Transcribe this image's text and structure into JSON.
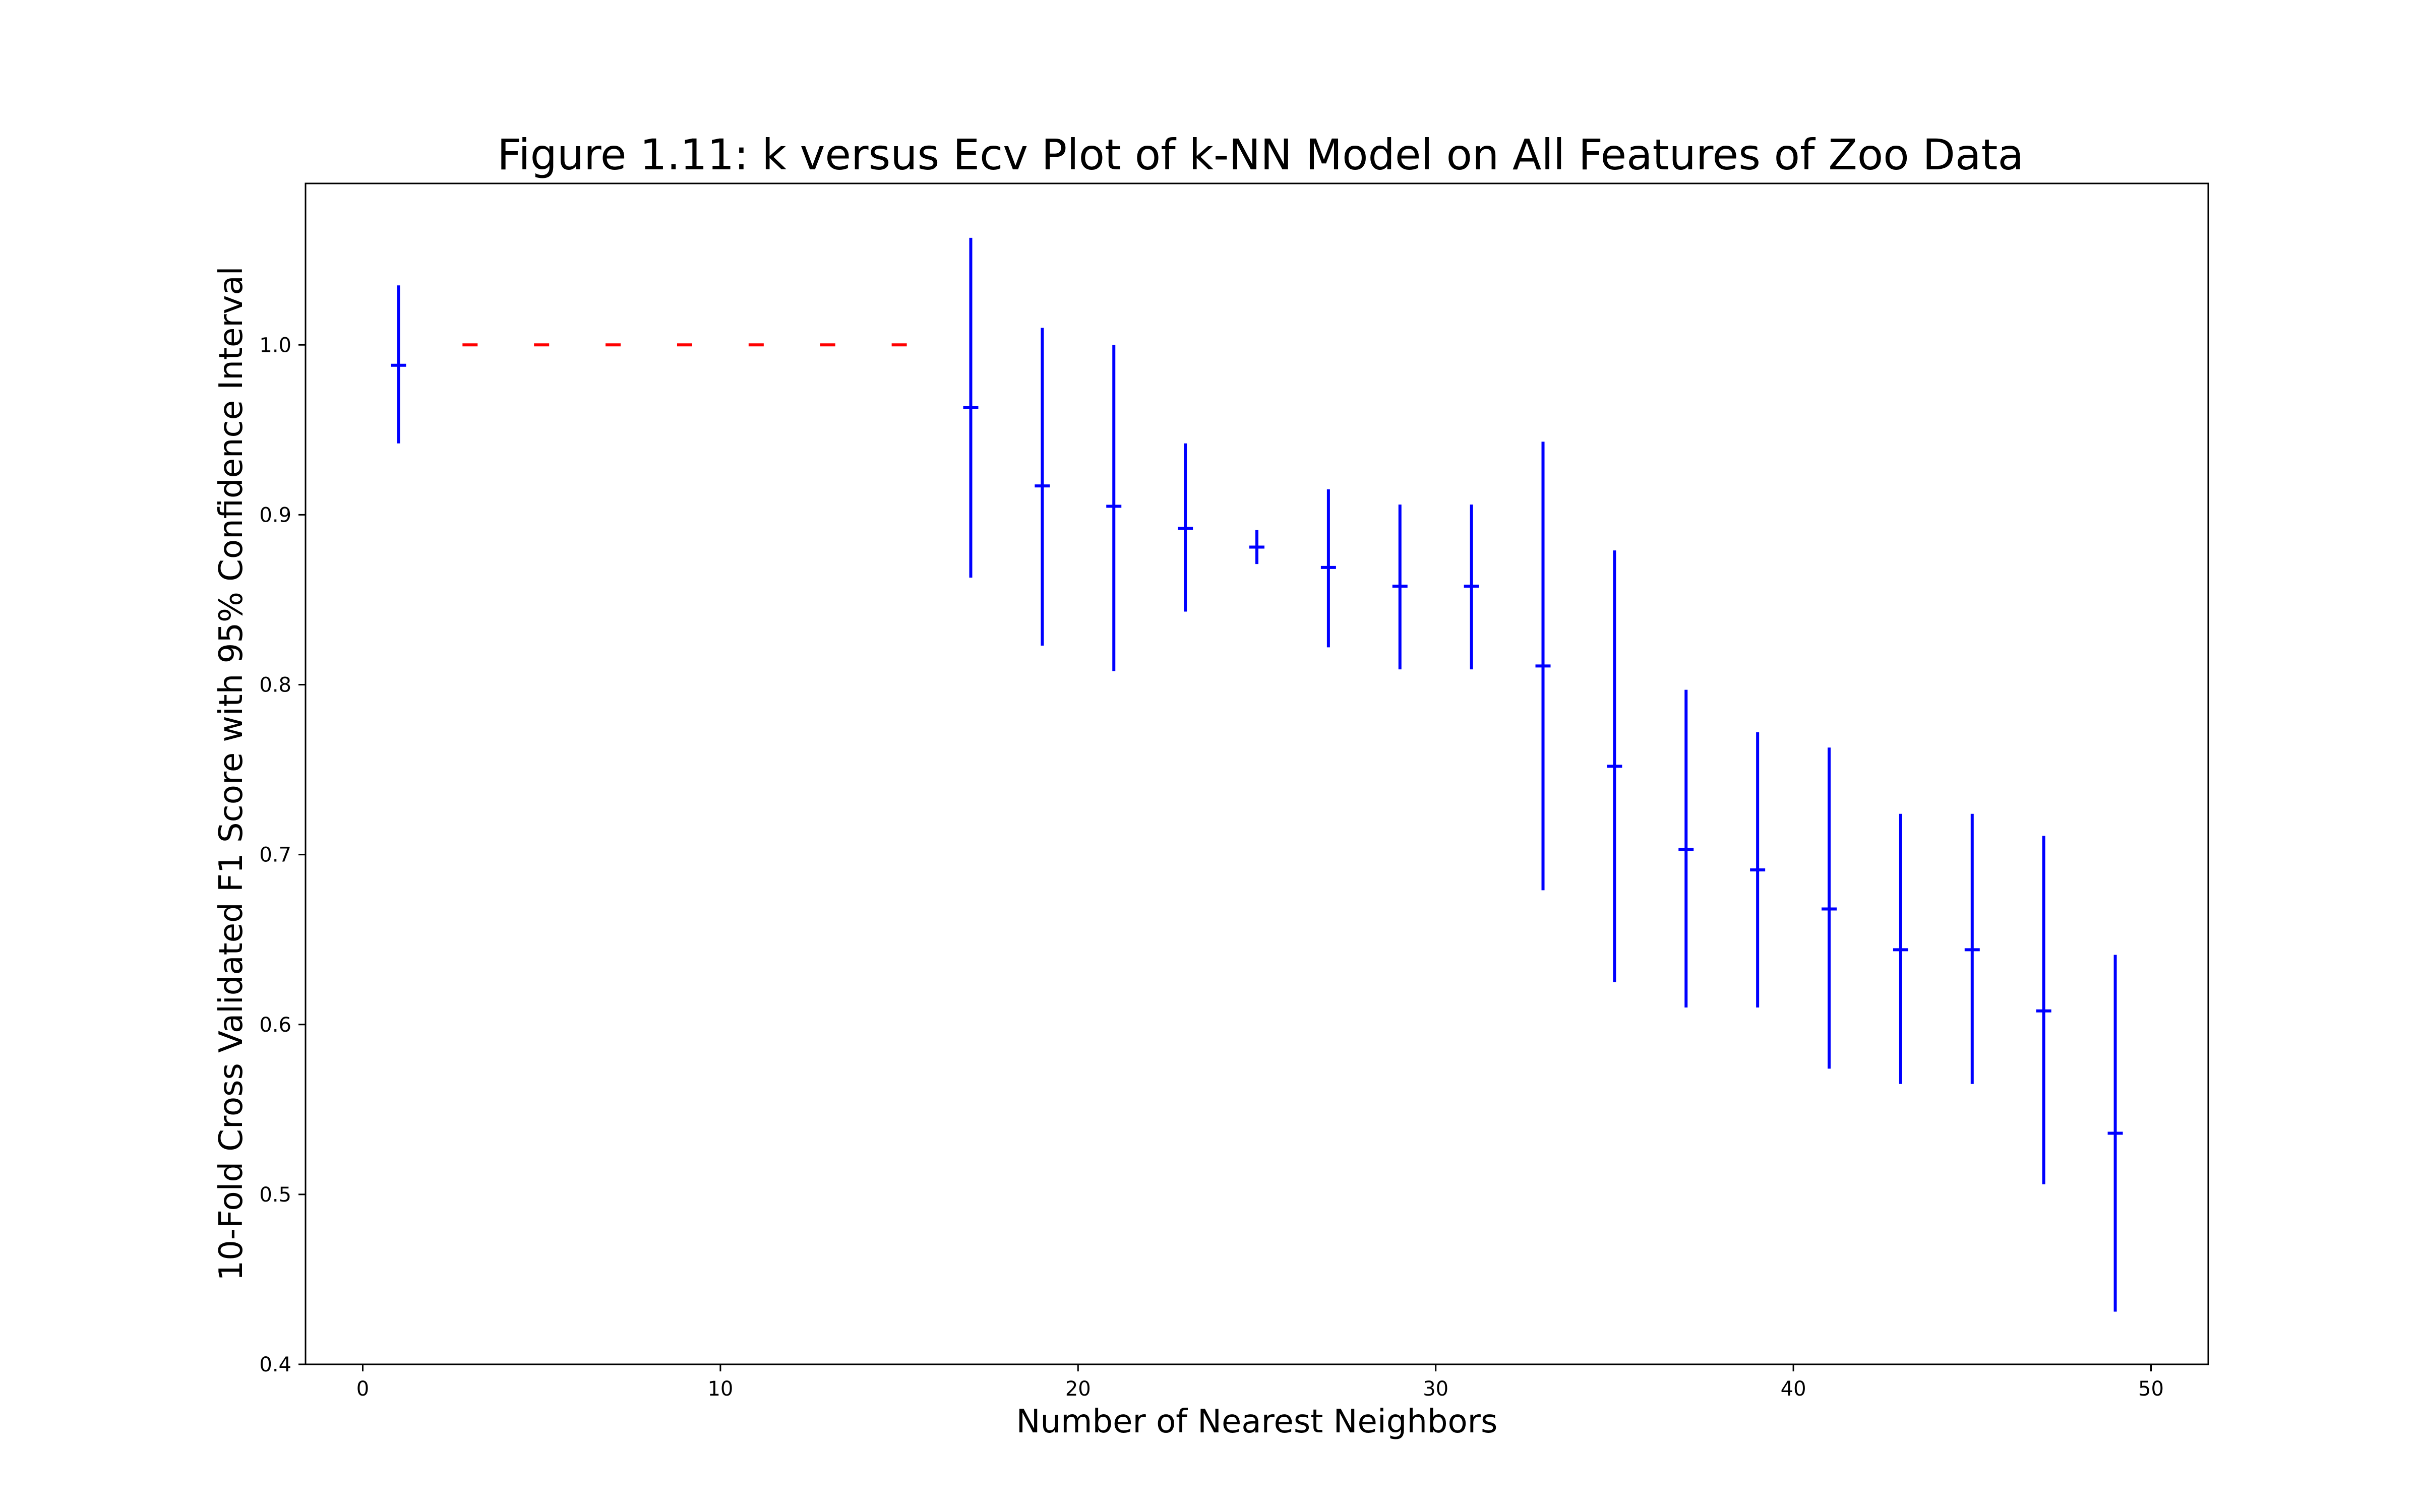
{
  "chart_data": {
    "type": "errorbar",
    "title": "Figure 1.11: k versus Ecv Plot of k-NN Model on All Features of Zoo Data",
    "xlabel": "Number of Nearest Neighbors",
    "ylabel": "10-Fold Cross Validated F1 Score with 95% Confidence Interval",
    "xlim": [
      -1.6,
      51.6
    ],
    "ylim": [
      0.4,
      1.095
    ],
    "xticks": [
      0,
      10,
      20,
      30,
      40,
      50
    ],
    "yticks": [
      0.4,
      0.5,
      0.6,
      0.7,
      0.8,
      0.9,
      1.0
    ],
    "xtick_labels": [
      "0",
      "10",
      "20",
      "30",
      "40",
      "50"
    ],
    "ytick_labels": [
      "0.4",
      "0.5",
      "0.6",
      "0.7",
      "0.8",
      "0.9",
      "1.0"
    ],
    "grid": false,
    "colors": {
      "with_error": "#0000ff",
      "zero_error": "#ff0000"
    },
    "points": [
      {
        "k": 1,
        "mean": 0.988,
        "lower": 0.942,
        "upper": 1.035
      },
      {
        "k": 3,
        "mean": 1.0,
        "lower": 1.0,
        "upper": 1.0
      },
      {
        "k": 5,
        "mean": 1.0,
        "lower": 1.0,
        "upper": 1.0
      },
      {
        "k": 7,
        "mean": 1.0,
        "lower": 1.0,
        "upper": 1.0
      },
      {
        "k": 9,
        "mean": 1.0,
        "lower": 1.0,
        "upper": 1.0
      },
      {
        "k": 11,
        "mean": 1.0,
        "lower": 1.0,
        "upper": 1.0
      },
      {
        "k": 13,
        "mean": 1.0,
        "lower": 1.0,
        "upper": 1.0
      },
      {
        "k": 15,
        "mean": 1.0,
        "lower": 1.0,
        "upper": 1.0
      },
      {
        "k": 17,
        "mean": 0.963,
        "lower": 0.863,
        "upper": 1.063
      },
      {
        "k": 19,
        "mean": 0.917,
        "lower": 0.823,
        "upper": 1.01
      },
      {
        "k": 21,
        "mean": 0.905,
        "lower": 0.808,
        "upper": 1.0
      },
      {
        "k": 23,
        "mean": 0.892,
        "lower": 0.843,
        "upper": 0.942
      },
      {
        "k": 25,
        "mean": 0.881,
        "lower": 0.871,
        "upper": 0.891
      },
      {
        "k": 27,
        "mean": 0.869,
        "lower": 0.822,
        "upper": 0.915
      },
      {
        "k": 29,
        "mean": 0.858,
        "lower": 0.809,
        "upper": 0.906
      },
      {
        "k": 31,
        "mean": 0.858,
        "lower": 0.809,
        "upper": 0.906
      },
      {
        "k": 33,
        "mean": 0.811,
        "lower": 0.679,
        "upper": 0.943
      },
      {
        "k": 35,
        "mean": 0.752,
        "lower": 0.625,
        "upper": 0.879
      },
      {
        "k": 37,
        "mean": 0.703,
        "lower": 0.61,
        "upper": 0.797
      },
      {
        "k": 39,
        "mean": 0.691,
        "lower": 0.61,
        "upper": 0.772
      },
      {
        "k": 41,
        "mean": 0.668,
        "lower": 0.574,
        "upper": 0.763
      },
      {
        "k": 43,
        "mean": 0.644,
        "lower": 0.565,
        "upper": 0.724
      },
      {
        "k": 45,
        "mean": 0.644,
        "lower": 0.565,
        "upper": 0.724
      },
      {
        "k": 47,
        "mean": 0.608,
        "lower": 0.506,
        "upper": 0.711
      },
      {
        "k": 49,
        "mean": 0.536,
        "lower": 0.431,
        "upper": 0.641
      }
    ]
  }
}
